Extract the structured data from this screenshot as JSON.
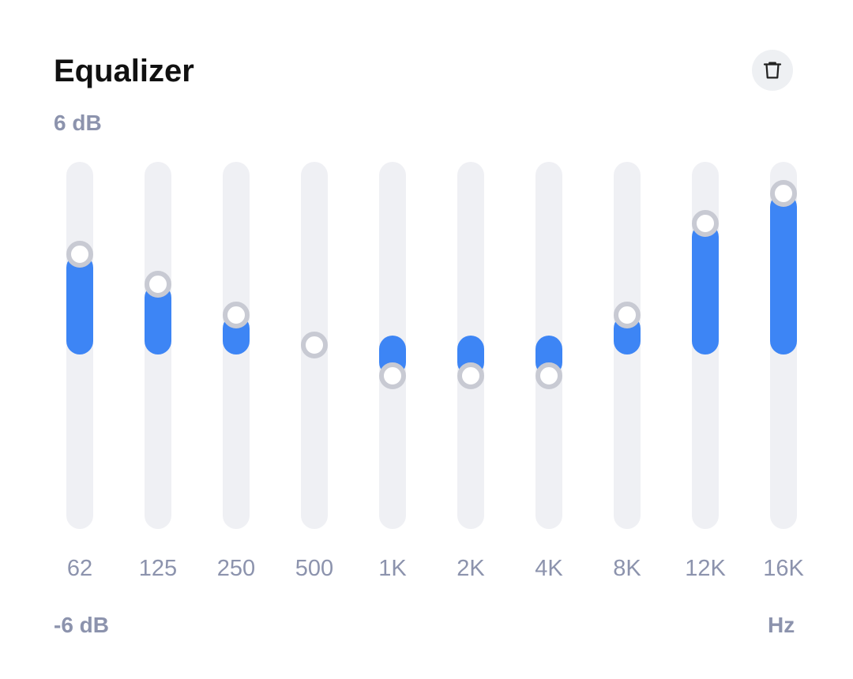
{
  "header": {
    "title": "Equalizer",
    "clear_button_icon": "trash-icon"
  },
  "scale": {
    "max_label": "6 dB",
    "min_label": "-6 dB",
    "unit_label": "Hz",
    "min_db": -6,
    "max_db": 6
  },
  "bands": [
    {
      "label": "62",
      "gain_db": 3.0
    },
    {
      "label": "125",
      "gain_db": 2.0
    },
    {
      "label": "250",
      "gain_db": 1.0
    },
    {
      "label": "500",
      "gain_db": 0.0
    },
    {
      "label": "1K",
      "gain_db": -1.0
    },
    {
      "label": "2K",
      "gain_db": -1.0
    },
    {
      "label": "4K",
      "gain_db": -1.0
    },
    {
      "label": "8K",
      "gain_db": 1.0
    },
    {
      "label": "12K",
      "gain_db": 4.0
    },
    {
      "label": "16K",
      "gain_db": 5.0
    }
  ],
  "colors": {
    "accent": "#3d85f5",
    "track": "#eff0f4",
    "knob_ring": "#c8cad3",
    "muted_text": "#8c93ad",
    "title_text": "#111111"
  }
}
